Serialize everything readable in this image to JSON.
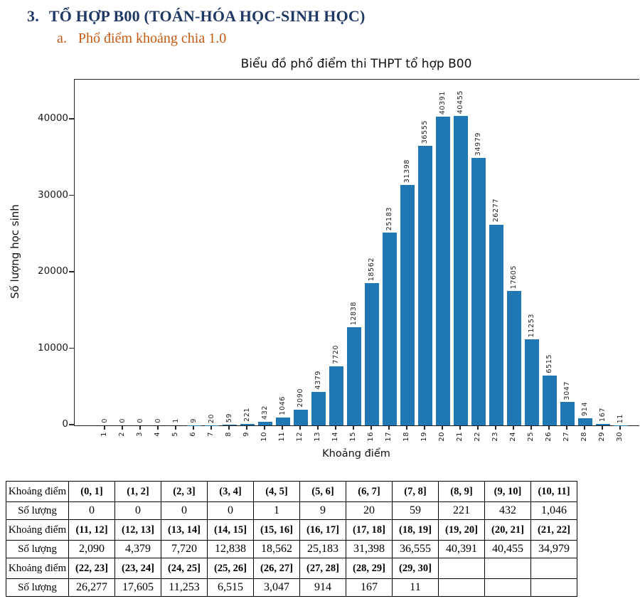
{
  "heading": {
    "number": "3.",
    "title": "TỔ HỢP B00 (TOÁN-HÓA HỌC-SINH HỌC)"
  },
  "subheading": {
    "letter": "a.",
    "title": "Phổ điểm khoảng chia 1.0"
  },
  "colors": {
    "heading_text": "#1f3864",
    "subheading_text": "#c45911",
    "bar": "#1f77b4",
    "axis": "#262626"
  },
  "chart_data": {
    "type": "bar",
    "title": "Biểu đồ phổ điểm thi THPT tổ hợp B00",
    "xlabel": "Khoảng điểm",
    "ylabel": "Số lượng học sinh",
    "categories": [
      "1",
      "2",
      "3",
      "4",
      "5",
      "6",
      "7",
      "8",
      "9",
      "10",
      "11",
      "12",
      "13",
      "14",
      "15",
      "16",
      "17",
      "18",
      "19",
      "20",
      "21",
      "22",
      "23",
      "24",
      "25",
      "26",
      "27",
      "28",
      "29",
      "30"
    ],
    "values": [
      0,
      0,
      0,
      0,
      1,
      9,
      20,
      59,
      221,
      432,
      1046,
      2090,
      4379,
      7720,
      12838,
      18562,
      25183,
      31398,
      36555,
      40391,
      40455,
      34979,
      26277,
      17605,
      11253,
      6515,
      3047,
      914,
      167,
      11
    ],
    "bar_labels": [
      "0",
      "0",
      "0",
      "0",
      "1",
      "9",
      "20",
      "59",
      "221",
      "432",
      "1046",
      "2090",
      "4379",
      "7720",
      "12838",
      "18562",
      "25183",
      "31398",
      "36555",
      "40391",
      "40455",
      "34979",
      "26277",
      "17605",
      "11253",
      "6515",
      "3047",
      "914",
      "167",
      "11"
    ],
    "yticks": [
      0,
      10000,
      20000,
      30000,
      40000
    ],
    "ytick_labels": [
      "0",
      "10000",
      "20000",
      "30000",
      "40000"
    ],
    "ylim": [
      0,
      45200
    ],
    "grid": false,
    "legend_position": "none",
    "bar_color": "#1f77b4"
  },
  "table": {
    "interval_row_header": "Khoảng điểm",
    "count_row_header": "Số lượng",
    "groups": [
      {
        "intervals": [
          "(0, 1]",
          "(1, 2]",
          "(2, 3]",
          "(3, 4]",
          "(4, 5]",
          "(5, 6]",
          "(6, 7]",
          "(7, 8]",
          "(8, 9]",
          "(9, 10]",
          "(10, 11]"
        ],
        "counts": [
          "0",
          "0",
          "0",
          "0",
          "1",
          "9",
          "20",
          "59",
          "221",
          "432",
          "1,046"
        ]
      },
      {
        "intervals": [
          "(11, 12]",
          "(12, 13]",
          "(13, 14]",
          "(14, 15]",
          "(15, 16]",
          "(16, 17]",
          "(17, 18]",
          "(18, 19]",
          "(19, 20]",
          "(20, 21]",
          "(21, 22]"
        ],
        "counts": [
          "2,090",
          "4,379",
          "7,720",
          "12,838",
          "18,562",
          "25,183",
          "31,398",
          "36,555",
          "40,391",
          "40,455",
          "34,979"
        ]
      },
      {
        "intervals": [
          "(22, 23]",
          "(23, 24]",
          "(24, 25]",
          "(25, 26]",
          "(26, 27]",
          "(27, 28]",
          "(28, 29]",
          "(29, 30]",
          "",
          "",
          ""
        ],
        "counts": [
          "26,277",
          "17,605",
          "11,253",
          "6,515",
          "3,047",
          "914",
          "167",
          "11",
          "",
          "",
          ""
        ]
      }
    ]
  }
}
